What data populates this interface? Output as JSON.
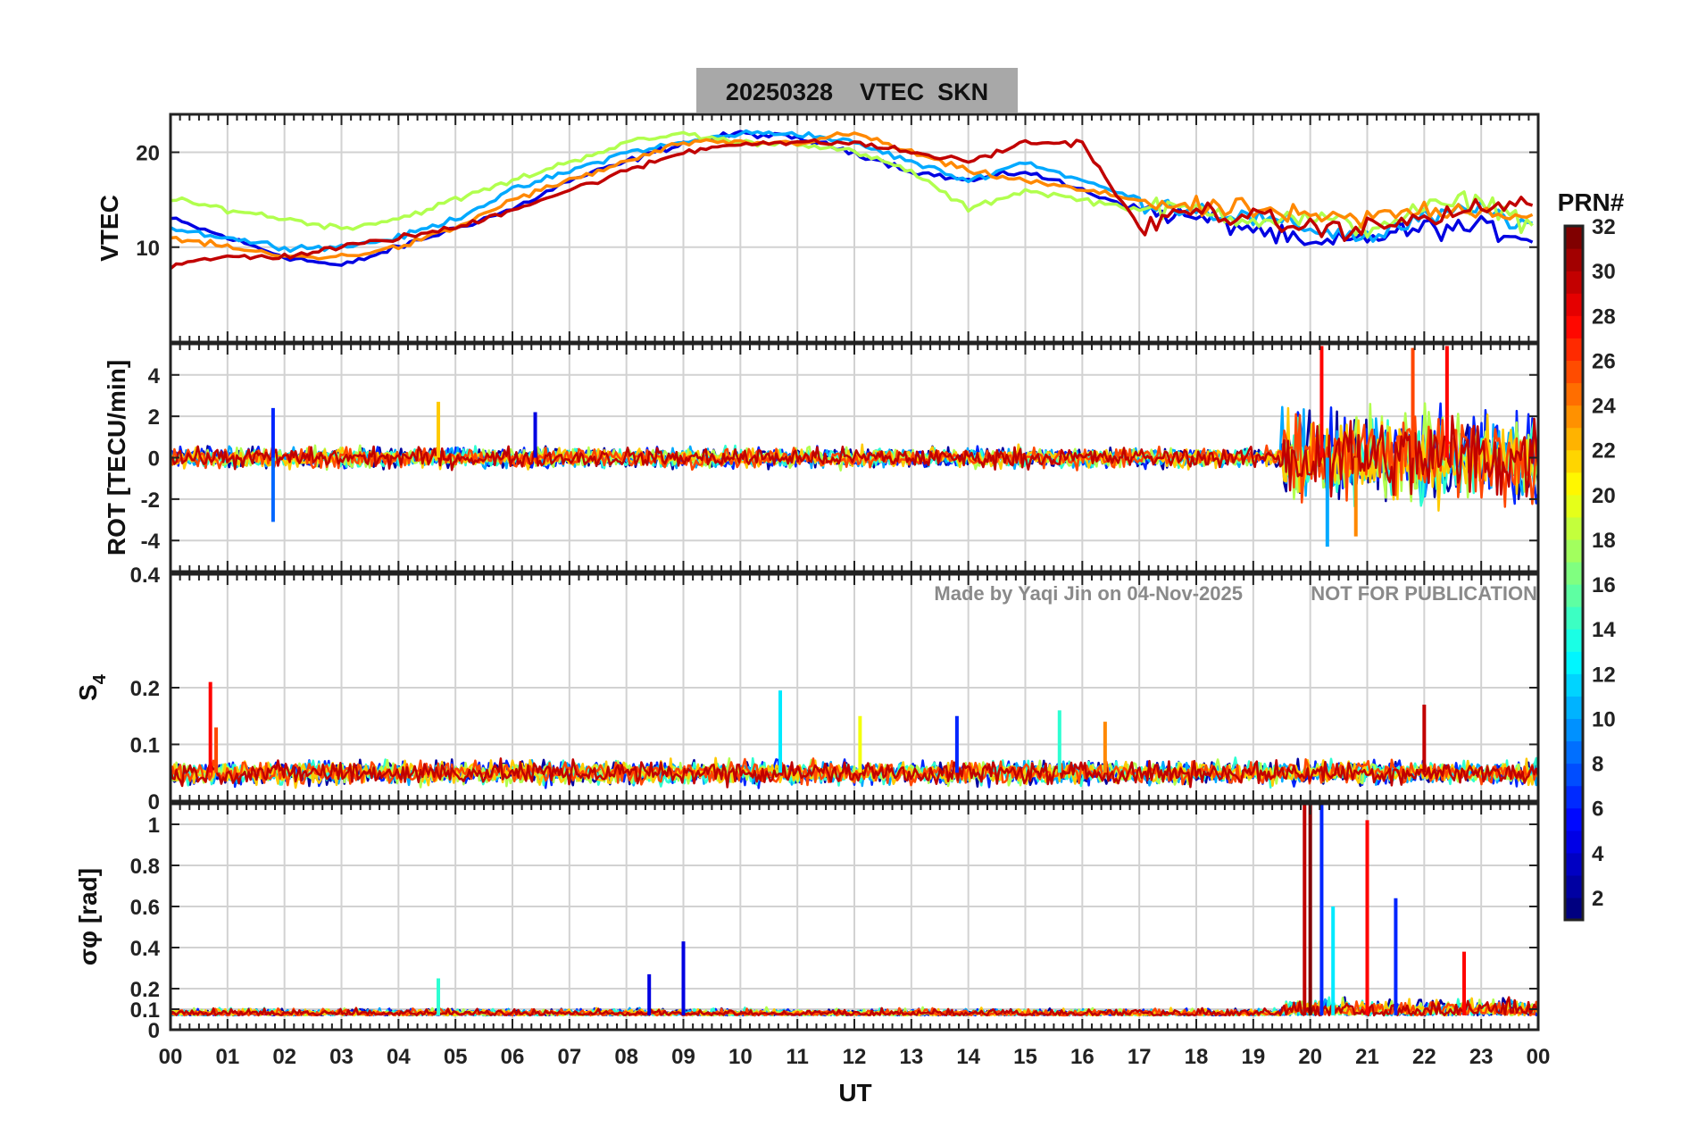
{
  "title": "20250328    VTEC  SKN",
  "watermark": {
    "left": "Made by Yaqi Jin on 04-Nov-2025",
    "right": "NOT FOR PUBLICATION"
  },
  "xlabel": "UT",
  "xticklabels": [
    "00",
    "01",
    "02",
    "03",
    "04",
    "05",
    "06",
    "07",
    "08",
    "09",
    "10",
    "11",
    "12",
    "13",
    "14",
    "15",
    "16",
    "17",
    "18",
    "19",
    "20",
    "21",
    "22",
    "23",
    "00"
  ],
  "colorbar": {
    "label": "PRN#",
    "ticks": [
      "2",
      "4",
      "6",
      "8",
      "10",
      "12",
      "14",
      "16",
      "18",
      "20",
      "22",
      "24",
      "26",
      "28",
      "30",
      "32"
    ],
    "range": [
      1,
      32
    ]
  },
  "panels": [
    {
      "ylabel": "VTEC",
      "ylim": [
        0,
        24
      ],
      "yticks": [
        "10",
        "20"
      ]
    },
    {
      "ylabel": "ROT [TECU/min]",
      "ylim": [
        -5.5,
        5.5
      ],
      "yticks": [
        "-4",
        "-2",
        "0",
        "2",
        "4"
      ]
    },
    {
      "ylabel": "S4",
      "ylim": [
        0,
        0.4
      ],
      "yticks": [
        "0",
        "0.1",
        "0.2",
        "0.4"
      ]
    },
    {
      "ylabel": "σφ [rad]",
      "ylim": [
        0,
        1.1
      ],
      "yticks": [
        "0",
        "0.1",
        "0.2",
        "0.4",
        "0.6",
        "0.8",
        "1"
      ]
    }
  ],
  "chart_data": [
    {
      "type": "line",
      "title": "20250328    VTEC  SKN",
      "ylabel": "VTEC",
      "xlabel": "UT",
      "xlim": [
        0,
        24
      ],
      "ylim": [
        0,
        24
      ],
      "grid": true,
      "color_by": "PRN#",
      "series": [
        {
          "prn": 4,
          "x": [
            0,
            1,
            2,
            3,
            4,
            5,
            6,
            7,
            8,
            9,
            10,
            11,
            12,
            13,
            14,
            15,
            16,
            17,
            18,
            19,
            20,
            21,
            22,
            23,
            24
          ],
          "y": [
            13,
            11,
            9,
            8,
            10,
            12,
            14,
            17,
            19,
            21,
            22,
            21.5,
            20,
            18,
            17,
            18,
            16,
            14,
            13,
            12,
            10,
            11,
            12,
            12,
            11
          ]
        },
        {
          "prn": 10,
          "x": [
            0,
            1,
            2,
            3,
            4,
            5,
            6,
            7,
            8,
            9,
            10,
            11,
            12,
            13,
            14,
            15,
            16,
            17,
            18,
            19,
            20,
            21,
            22,
            23,
            24
          ],
          "y": [
            12,
            11,
            10,
            10,
            11,
            13,
            16,
            18,
            20,
            21,
            22,
            22,
            21,
            19,
            17,
            19,
            17,
            15,
            14,
            13,
            12,
            11,
            13,
            14,
            12
          ]
        },
        {
          "prn": 18,
          "x": [
            0,
            1,
            2,
            3,
            4,
            5,
            6,
            7,
            8,
            9,
            10,
            11,
            12,
            13,
            14,
            15,
            16,
            17,
            18,
            19,
            20,
            21,
            22,
            23,
            24
          ],
          "y": [
            15,
            14,
            13,
            12,
            13,
            15,
            17,
            19,
            21,
            22,
            21,
            21,
            20,
            18,
            14,
            16,
            15,
            14,
            14,
            13,
            13,
            12,
            14,
            15,
            12
          ]
        },
        {
          "prn": 24,
          "x": [
            0,
            1,
            2,
            3,
            4,
            5,
            6,
            7,
            8,
            9,
            10,
            11,
            12,
            13,
            14,
            15,
            16,
            17,
            18,
            19,
            20,
            21,
            22,
            23,
            24
          ],
          "y": [
            11,
            10,
            9,
            9,
            10,
            12,
            15,
            17,
            19,
            21,
            21,
            21,
            22,
            20,
            18,
            17,
            16,
            15,
            14,
            14,
            13,
            13,
            14,
            14,
            13
          ]
        },
        {
          "prn": 30,
          "x": [
            0,
            1,
            2,
            3,
            4,
            5,
            6,
            7,
            8,
            9,
            10,
            11,
            12,
            13,
            14,
            15,
            16,
            17,
            18,
            19,
            20,
            21,
            22,
            23,
            24
          ],
          "y": [
            8,
            9,
            9,
            10,
            11,
            12,
            14,
            16,
            18,
            20,
            21,
            21,
            21,
            20,
            19,
            21,
            21,
            12,
            14,
            13,
            12,
            12,
            13,
            14,
            15
          ]
        }
      ]
    },
    {
      "type": "line",
      "ylabel": "ROT [TECU/min]",
      "xlabel": "UT",
      "xlim": [
        0,
        24
      ],
      "ylim": [
        -5.5,
        5.5
      ],
      "grid": true,
      "description_values": {
        "quiet_amplitude": 0.6,
        "active_period_UT": [
          19.5,
          24
        ],
        "active_amplitude": 4.5
      },
      "spikes": [
        {
          "x": 1.8,
          "y": 2.4,
          "prn": 6
        },
        {
          "x": 1.8,
          "y": -3.1,
          "prn": 8
        },
        {
          "x": 4.7,
          "y": 2.7,
          "prn": 22
        },
        {
          "x": 6.4,
          "y": 2.2,
          "prn": 4
        },
        {
          "x": 20.2,
          "y": 5.4,
          "prn": 28
        },
        {
          "x": 20.3,
          "y": -4.3,
          "prn": 10
        },
        {
          "x": 21.8,
          "y": 5.3,
          "prn": 26
        },
        {
          "x": 22.4,
          "y": 5.4,
          "prn": 28
        },
        {
          "x": 20.8,
          "y": -3.8,
          "prn": 24
        }
      ]
    },
    {
      "type": "line",
      "ylabel": "S4",
      "xlabel": "UT",
      "xlim": [
        0,
        24
      ],
      "ylim": [
        0,
        0.4
      ],
      "grid": true,
      "description_values": {
        "baseline": 0.05,
        "noise": 0.015
      },
      "spikes": [
        {
          "x": 0.7,
          "y": 0.21,
          "prn": 28
        },
        {
          "x": 0.8,
          "y": 0.13,
          "prn": 26
        },
        {
          "x": 10.7,
          "y": 0.195,
          "prn": 12
        },
        {
          "x": 12.1,
          "y": 0.15,
          "prn": 20
        },
        {
          "x": 13.8,
          "y": 0.15,
          "prn": 6
        },
        {
          "x": 15.6,
          "y": 0.16,
          "prn": 14
        },
        {
          "x": 16.4,
          "y": 0.14,
          "prn": 24
        },
        {
          "x": 22.0,
          "y": 0.17,
          "prn": 30
        }
      ]
    },
    {
      "type": "line",
      "ylabel": "σφ [rad]",
      "xlabel": "UT",
      "xlim": [
        0,
        24
      ],
      "ylim": [
        0,
        1.1
      ],
      "grid": true,
      "description_values": {
        "baseline": 0.07,
        "noise": 0.025
      },
      "spikes": [
        {
          "x": 4.7,
          "y": 0.25,
          "prn": 14
        },
        {
          "x": 8.4,
          "y": 0.27,
          "prn": 4
        },
        {
          "x": 9.0,
          "y": 0.43,
          "prn": 4
        },
        {
          "x": 19.9,
          "y": 1.1,
          "prn": 30
        },
        {
          "x": 20.0,
          "y": 1.1,
          "prn": 32
        },
        {
          "x": 20.2,
          "y": 1.1,
          "prn": 6
        },
        {
          "x": 20.4,
          "y": 0.6,
          "prn": 12
        },
        {
          "x": 21.0,
          "y": 1.02,
          "prn": 28
        },
        {
          "x": 21.5,
          "y": 0.64,
          "prn": 6
        },
        {
          "x": 22.7,
          "y": 0.38,
          "prn": 28
        }
      ]
    }
  ]
}
